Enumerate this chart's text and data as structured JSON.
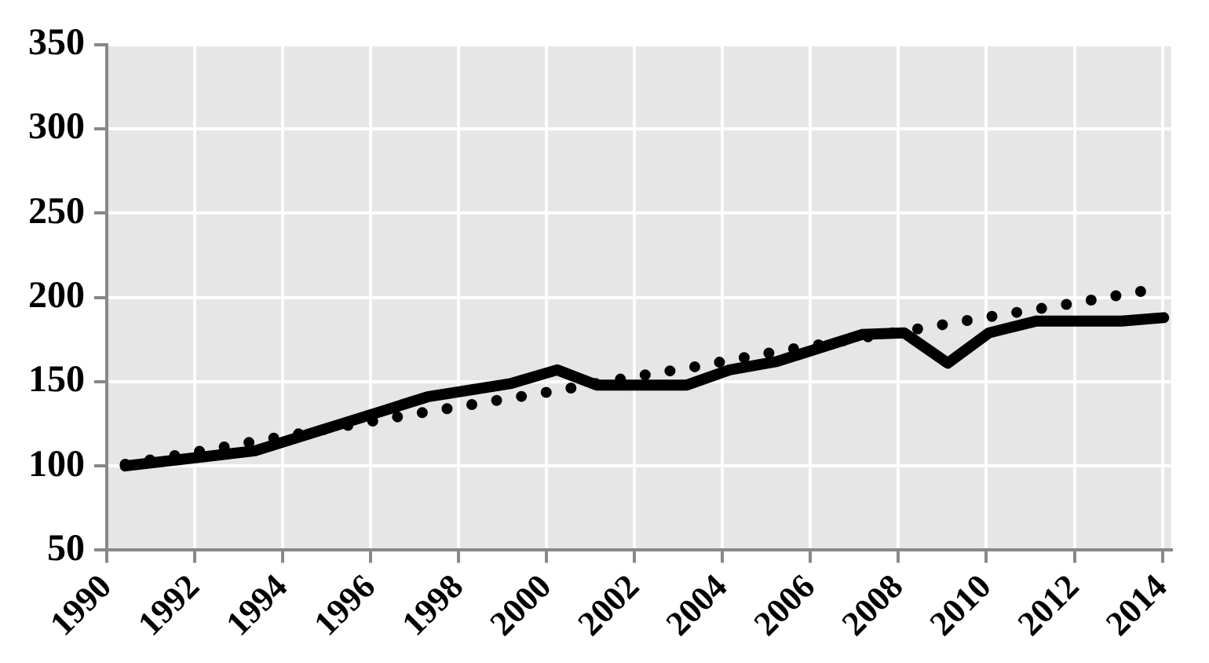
{
  "chart_data": {
    "type": "line",
    "xlim": [
      1990,
      2014.2
    ],
    "xticks": [
      1990,
      1992,
      1994,
      1996,
      1998,
      2000,
      2002,
      2004,
      2006,
      2008,
      2010,
      2012,
      2014
    ],
    "ylim": [
      50,
      350
    ],
    "yticks": [
      50,
      100,
      150,
      200,
      250,
      300,
      350
    ],
    "grid": true,
    "marker": "none",
    "series": [
      {
        "color": "#000000",
        "line_style": "solid",
        "x": [
          1990.42,
          1993.37,
          1996.32,
          1997.29,
          1999.2,
          2000.24,
          2001.14,
          2003.19,
          2004.16,
          2005.24,
          2007.17,
          2008.13,
          2009.12,
          2010.06,
          2011.14,
          2013.07,
          2014.03
        ],
        "values": [
          100,
          109,
          133,
          141,
          149,
          157,
          148,
          148,
          157,
          162,
          178,
          179,
          161,
          179,
          186,
          186,
          188
        ]
      },
      {
        "color": "#000000",
        "line_style": "dotted",
        "x": [
          1990.42,
          1993.91,
          1996.8,
          2000.3,
          2001.99,
          2003.19,
          2005.48,
          2008.37,
          2010.18,
          2011.86,
          2013.6
        ],
        "values": [
          101,
          117,
          130,
          145,
          153,
          158,
          169,
          181,
          189,
          196,
          204
        ]
      }
    ]
  }
}
